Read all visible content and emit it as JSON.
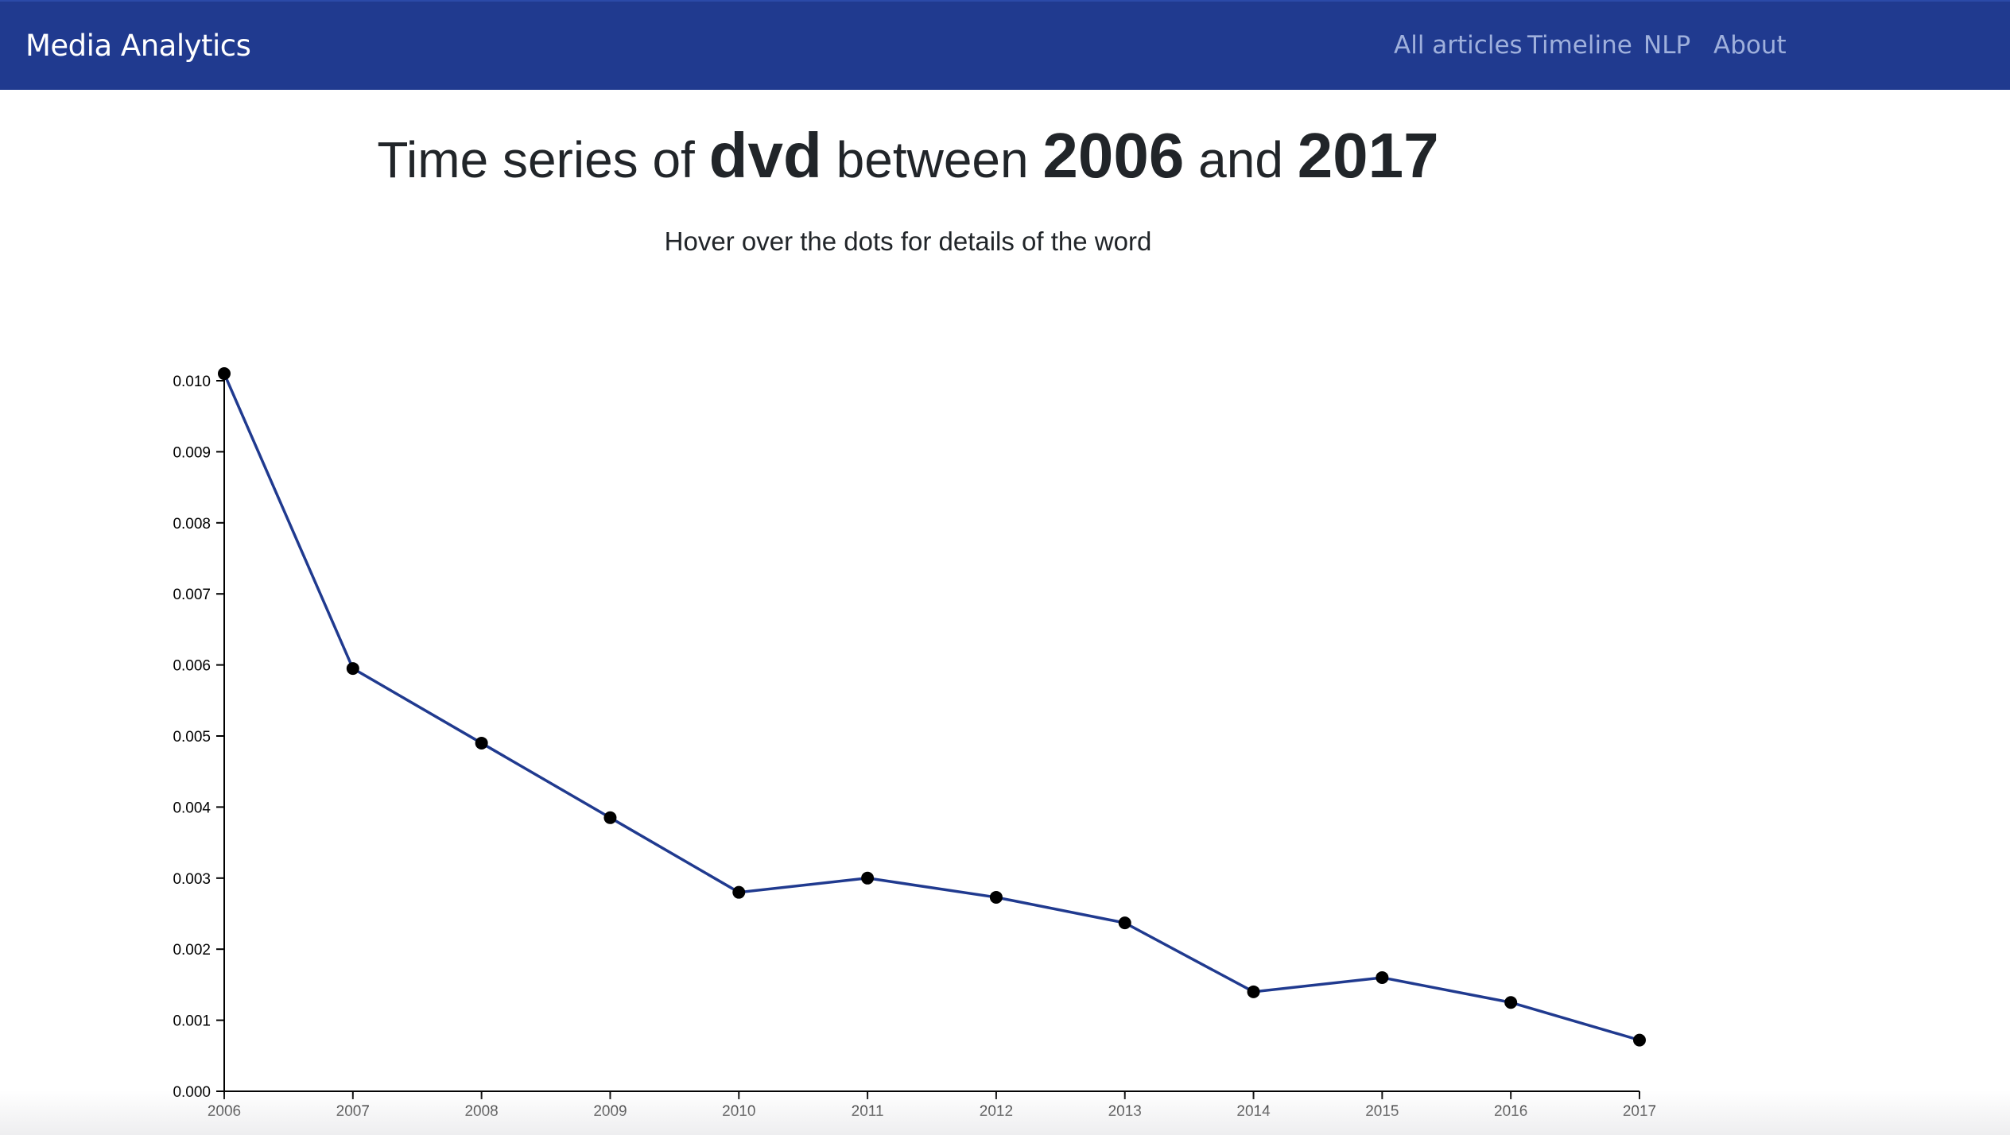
{
  "navbar": {
    "brand": "Media Analytics",
    "links": [
      "All articles",
      "Timeline",
      "NLP",
      "About"
    ]
  },
  "headline": {
    "prefix": "Time series of",
    "word": "dvd",
    "between": "between",
    "start_year": "2006",
    "and": "and",
    "end_year": "2017"
  },
  "subtitle": "Hover over the dots for details of the word",
  "colors": {
    "navbar": "#203a8f",
    "line": "#203a8f",
    "dots": "#000000"
  },
  "chart_data": {
    "type": "line",
    "title": "",
    "xlabel": "",
    "ylabel": "",
    "x": [
      2006,
      2007,
      2008,
      2009,
      2010,
      2011,
      2012,
      2013,
      2014,
      2015,
      2016,
      2017
    ],
    "series": [
      {
        "values": [
          0.0101,
          0.00595,
          0.0049,
          0.00385,
          0.0028,
          0.003,
          0.00273,
          0.00237,
          0.0014,
          0.0016,
          0.00125,
          0.00072
        ]
      }
    ],
    "ylim": [
      0,
      0.01
    ],
    "xlim": [
      2006,
      2017
    ],
    "y_ticks": [
      "0.000",
      "0.001",
      "0.002",
      "0.003",
      "0.004",
      "0.005",
      "0.006",
      "0.007",
      "0.008",
      "0.009",
      "0.010"
    ],
    "x_ticks": [
      "2006",
      "2007",
      "2008",
      "2009",
      "2010",
      "2011",
      "2012",
      "2013",
      "2014",
      "2015",
      "2016",
      "2017"
    ],
    "grid": false,
    "legend": "none"
  }
}
